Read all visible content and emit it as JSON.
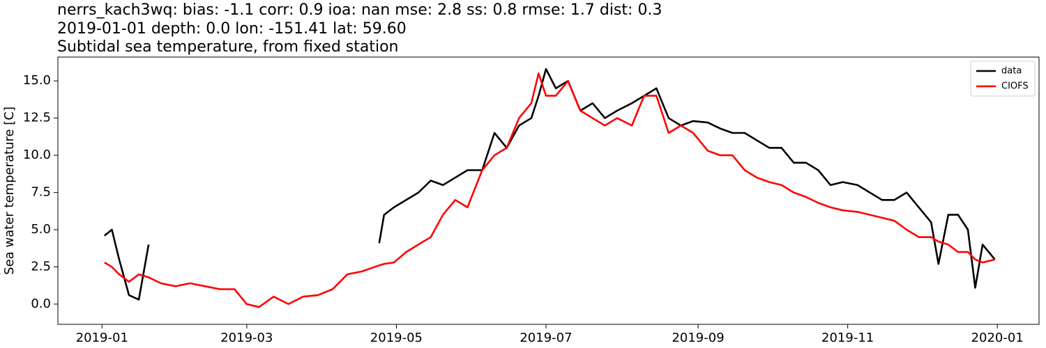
{
  "chart_data": {
    "type": "line",
    "title_lines": [
      "nerrs_kach3wq: bias: -1.1  corr: 0.9  ioa: nan  mse: 2.8  ss: 0.8  rmse: 1.7  dist: 0.3",
      "2019-01-01 depth: 0.0 lon: -151.41 lat: 59.60",
      "Subtidal sea temperature, from fixed station"
    ],
    "ylabel": "Sea water temperature [C]",
    "legend": "upper right",
    "x": [
      "2019-01-02",
      "2019-01-05",
      "2019-01-08",
      "2019-01-12",
      "2019-01-16",
      "2019-01-20",
      "2019-01-25",
      "2019-01-31",
      "2019-02-06",
      "2019-02-12",
      "2019-02-18",
      "2019-02-24",
      "2019-03-01",
      "2019-03-06",
      "2019-03-12",
      "2019-03-18",
      "2019-03-24",
      "2019-03-30",
      "2019-04-05",
      "2019-04-11",
      "2019-04-17",
      "2019-04-24",
      "2019-04-26",
      "2019-04-30",
      "2019-05-05",
      "2019-05-10",
      "2019-05-15",
      "2019-05-20",
      "2019-05-25",
      "2019-05-30",
      "2019-06-05",
      "2019-06-10",
      "2019-06-15",
      "2019-06-20",
      "2019-06-25",
      "2019-06-28",
      "2019-07-01",
      "2019-07-05",
      "2019-07-10",
      "2019-07-15",
      "2019-07-20",
      "2019-07-25",
      "2019-07-30",
      "2019-08-05",
      "2019-08-10",
      "2019-08-15",
      "2019-08-20",
      "2019-08-25",
      "2019-08-30",
      "2019-09-05",
      "2019-09-10",
      "2019-09-15",
      "2019-09-20",
      "2019-09-25",
      "2019-09-30",
      "2019-10-05",
      "2019-10-10",
      "2019-10-15",
      "2019-10-20",
      "2019-10-25",
      "2019-10-30",
      "2019-11-05",
      "2019-11-10",
      "2019-11-15",
      "2019-11-20",
      "2019-11-25",
      "2019-11-30",
      "2019-12-05",
      "2019-12-08",
      "2019-12-12",
      "2019-12-16",
      "2019-12-20",
      "2019-12-23",
      "2019-12-26",
      "2019-12-31"
    ],
    "series": [
      {
        "name": "data",
        "color": "#000000",
        "values": [
          4.6,
          5.0,
          3.0,
          0.6,
          0.3,
          4.0,
          null,
          null,
          null,
          null,
          null,
          null,
          null,
          null,
          null,
          null,
          null,
          null,
          null,
          null,
          null,
          4.1,
          6.0,
          6.5,
          7.0,
          7.5,
          8.3,
          8.0,
          8.5,
          9.0,
          9.0,
          11.5,
          10.5,
          12.0,
          12.5,
          14.0,
          15.8,
          14.5,
          15.0,
          13.0,
          13.5,
          12.5,
          13.0,
          13.5,
          14.0,
          14.5,
          12.5,
          12.0,
          12.3,
          12.2,
          11.8,
          11.5,
          11.5,
          11.0,
          10.5,
          10.5,
          9.5,
          9.5,
          9.0,
          8.0,
          8.2,
          8.0,
          7.5,
          7.0,
          7.0,
          7.5,
          6.5,
          5.5,
          2.7,
          6.0,
          6.0,
          5.0,
          1.1,
          4.0,
          3.0
        ]
      },
      {
        "name": "CIOFS",
        "color": "#ff0000",
        "values": [
          2.8,
          2.5,
          2.0,
          1.5,
          2.0,
          1.8,
          1.4,
          1.2,
          1.4,
          1.2,
          1.0,
          1.0,
          0.0,
          -0.2,
          0.5,
          0.0,
          0.5,
          0.6,
          1.0,
          2.0,
          2.2,
          2.6,
          2.7,
          2.8,
          3.5,
          4.0,
          4.5,
          6.0,
          7.0,
          6.5,
          9.0,
          10.0,
          10.5,
          12.5,
          13.5,
          15.5,
          14.0,
          14.0,
          15.0,
          13.0,
          12.5,
          12.0,
          12.5,
          12.0,
          14.0,
          14.0,
          11.5,
          12.0,
          11.5,
          10.3,
          10.0,
          10.0,
          9.0,
          8.5,
          8.2,
          8.0,
          7.5,
          7.2,
          6.8,
          6.5,
          6.3,
          6.2,
          6.0,
          5.8,
          5.6,
          5.0,
          4.5,
          4.5,
          4.2,
          4.0,
          3.5,
          3.5,
          3.0,
          2.8,
          3.0
        ]
      }
    ],
    "xlim": [
      "2018-12-14",
      "2020-01-18"
    ],
    "xticks": [
      {
        "value": "2019-01-01",
        "label": "2019-01"
      },
      {
        "value": "2019-03-01",
        "label": "2019-03"
      },
      {
        "value": "2019-05-01",
        "label": "2019-05"
      },
      {
        "value": "2019-07-01",
        "label": "2019-07"
      },
      {
        "value": "2019-09-01",
        "label": "2019-09"
      },
      {
        "value": "2019-11-01",
        "label": "2019-11"
      },
      {
        "value": "2020-01-01",
        "label": "2020-01"
      }
    ],
    "ylim": [
      -1.36,
      16.6
    ],
    "yticks": [
      {
        "value": 0,
        "label": "0.0"
      },
      {
        "value": 2.5,
        "label": "2.5"
      },
      {
        "value": 5,
        "label": "5.0"
      },
      {
        "value": 7.5,
        "label": "7.5"
      },
      {
        "value": 10,
        "label": "10.0"
      },
      {
        "value": 12.5,
        "label": "12.5"
      },
      {
        "value": 15,
        "label": "15.0"
      }
    ]
  }
}
